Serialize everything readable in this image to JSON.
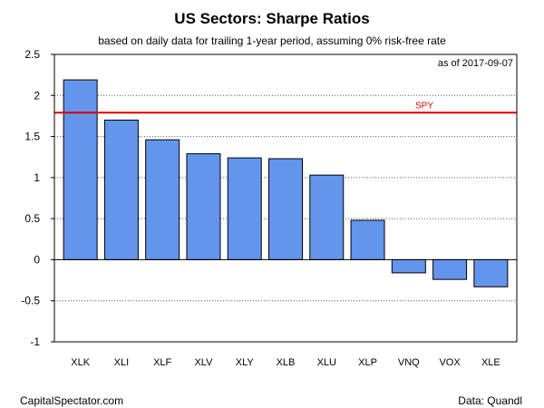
{
  "chart_data": {
    "type": "bar",
    "title": "US Sectors: Sharpe Ratios",
    "subtitle": "based on daily data for trailing 1-year period, assuming 0% risk-free rate",
    "as_of": "as of  2017-09-07",
    "categories": [
      "XLK",
      "XLI",
      "XLF",
      "XLV",
      "XLY",
      "XLB",
      "XLU",
      "XLP",
      "VNQ",
      "VOX",
      "XLE"
    ],
    "values": [
      2.19,
      1.7,
      1.46,
      1.29,
      1.24,
      1.23,
      1.03,
      0.48,
      -0.16,
      -0.24,
      -0.33
    ],
    "ylim": [
      -1,
      2.5
    ],
    "yticks": [
      2.5,
      2,
      1.5,
      1,
      0.5,
      0,
      -0.5,
      -1
    ],
    "ytick_labels": [
      "2.5",
      "2",
      "1.5",
      "1",
      "0.5",
      "0",
      "-0.5",
      "-1"
    ],
    "grid": true,
    "reference_line": {
      "label": "SPY",
      "value": 1.79,
      "color": "#e00000"
    },
    "bar_color": "#6495ED",
    "footer_left": "CapitalSpectator.com",
    "footer_right": "Data: Quandl"
  }
}
